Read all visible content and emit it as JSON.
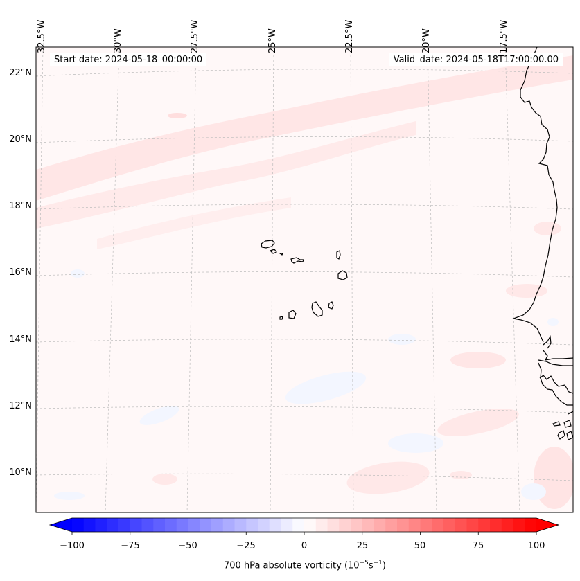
{
  "map": {
    "start_date": "Start date: 2024-05-18_00:00:00",
    "valid_date": "Valid_date: 2024-05-18T17:00:00.00",
    "lon_labels": [
      "32.5°W",
      "30°W",
      "27.5°W",
      "25°W",
      "22.5°W",
      "20°W",
      "17.5°W"
    ],
    "lat_labels": [
      "22°N",
      "20°N",
      "18°N",
      "16°N",
      "14°N",
      "12°N",
      "10°N"
    ],
    "colors": {
      "background": "#fff8f8",
      "positive_light": "#ffe6e6",
      "negative_light": "#f3f6ff",
      "coastline": "#000000",
      "gridline": "#bbbbbb"
    }
  },
  "colorbar": {
    "ticks": [
      "−100",
      "−75",
      "−50",
      "−25",
      "0",
      "25",
      "50",
      "75",
      "100"
    ],
    "label": "700 hPa absolute vorticity (10",
    "label_exp1": "−5",
    "label_mid": "s",
    "label_exp2": "−1",
    "label_end": ")",
    "min_color": "#0000ff",
    "mid_color": "#ffffff",
    "max_color": "#ff0000"
  }
}
